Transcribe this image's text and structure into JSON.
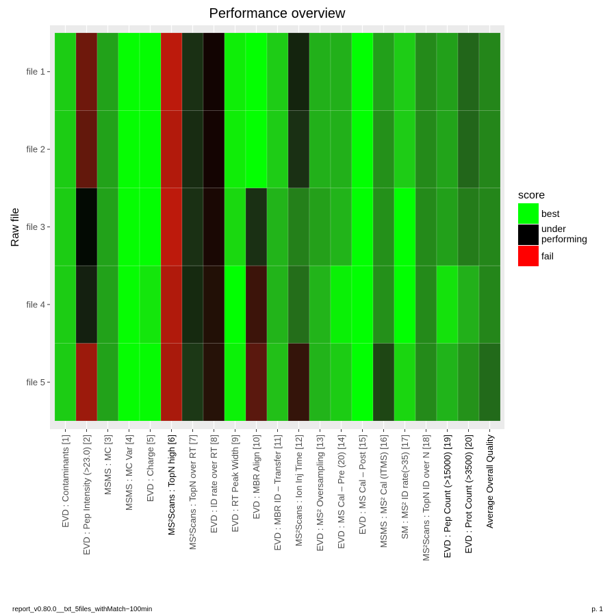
{
  "chart_data": {
    "type": "heatmap",
    "title": "Performance overview",
    "ylabel": "Raw file",
    "xlabel": "",
    "rows": [
      "file 1",
      "file 2",
      "file 3",
      "file 4",
      "file 5"
    ],
    "columns": [
      {
        "label": "EVD : Contaminants [1]",
        "highlight": false
      },
      {
        "label": "EVD : Pep Intensity (>23.0) [2]",
        "highlight": false
      },
      {
        "label": "MSMS : MC [3]",
        "highlight": false
      },
      {
        "label": "MSMS : MC Var [4]",
        "highlight": false
      },
      {
        "label": "EVD : Charge [5]",
        "highlight": false
      },
      {
        "label": "MS²Scans : TopN high [6]",
        "highlight": true
      },
      {
        "label": "MS²Scans : TopN over RT [7]",
        "highlight": false
      },
      {
        "label": "EVD : ID rate over RT [8]",
        "highlight": false
      },
      {
        "label": "EVD : RT Peak Width [9]",
        "highlight": false
      },
      {
        "label": "EVD : MBR Align [10]",
        "highlight": false
      },
      {
        "label": "EVD : MBR ID – Transfer [11]",
        "highlight": false
      },
      {
        "label": "MS²Scans : Ion Inj Time [12]",
        "highlight": false
      },
      {
        "label": "EVD : MS² Oversampling [13]",
        "highlight": false
      },
      {
        "label": "EVD : MS Cal – Pre (20) [14]",
        "highlight": false
      },
      {
        "label": "EVD : MS Cal – Post [15]",
        "highlight": false
      },
      {
        "label": "MSMS : MS² Cal (ITMS) [16]",
        "highlight": false
      },
      {
        "label": "SM : MS² ID rate(>35) [17]",
        "highlight": false
      },
      {
        "label": "MS²Scans : TopN ID over N [18]",
        "highlight": false
      },
      {
        "label": "EVD : Pep Count (>15000) [19]",
        "highlight": true
      },
      {
        "label": "EVD : Prot Count (>3500) [20]",
        "highlight": true
      },
      {
        "label": "Average Overall Quality",
        "highlight": true
      }
    ],
    "cell_colors": [
      [
        "#1ccc14",
        "#6e180c",
        "#22a21a",
        "#06fd03",
        "#05fd02",
        "#bc1a0c",
        "#1a3014",
        "#120402",
        "#0fee08",
        "#04ff02",
        "#1ecc16",
        "#14240e",
        "#22b01a",
        "#22b01a",
        "#02ff02",
        "#22a01a",
        "#1ecc16",
        "#248a1a",
        "#22a01a",
        "#22661a",
        "#24861a"
      ],
      [
        "#1ccc14",
        "#63180c",
        "#22a21a",
        "#06fd03",
        "#05fd02",
        "#b21a0c",
        "#182c12",
        "#140402",
        "#10ed08",
        "#04ff02",
        "#1ecc16",
        "#1a3014",
        "#22b01a",
        "#22b01a",
        "#02ff02",
        "#24901a",
        "#1ecc16",
        "#248a1a",
        "#22a41a",
        "#22661a",
        "#24861a"
      ],
      [
        "#1ccc14",
        "#030a03",
        "#22a21a",
        "#06fd03",
        "#03fe02",
        "#bd1a0c",
        "#1a3014",
        "#1a0804",
        "#1ad810",
        "#1a3014",
        "#22b41a",
        "#24801a",
        "#24a01a",
        "#22b41a",
        "#02ff02",
        "#24901a",
        "#02ff02",
        "#248a1a",
        "#22a01a",
        "#247c1a",
        "#24861a"
      ],
      [
        "#1ccc14",
        "#142010",
        "#22a21a",
        "#06fd03",
        "#14e60c",
        "#b01a0c",
        "#162a10",
        "#221006",
        "#02ff02",
        "#3c140a",
        "#22b41a",
        "#246e1a",
        "#22b41a",
        "#0af006",
        "#02ff02",
        "#24901a",
        "#02ff02",
        "#248a1a",
        "#14e20c",
        "#22b01a",
        "#24861a"
      ],
      [
        "#1ccc14",
        "#9c1a0c",
        "#22a21a",
        "#06fd03",
        "#06fb03",
        "#a91a0c",
        "#1c3816",
        "#261208",
        "#0cf208",
        "#5a180e",
        "#22c018",
        "#34140a",
        "#22b41a",
        "#1ccc14",
        "#02ff02",
        "#1e4614",
        "#1ad610",
        "#248a1a",
        "#20b41a",
        "#24921a",
        "#226a1a"
      ]
    ],
    "legend": {
      "title": "score",
      "placement": "right",
      "items": [
        {
          "label": "best",
          "color": "#00ff00"
        },
        {
          "label": "under performing",
          "color": "#000000"
        },
        {
          "label": "fail",
          "color": "#ff0000"
        }
      ]
    },
    "grid": true
  },
  "footer": {
    "left": "report_v0.80.0__txt_5files_withMatch−100min",
    "right": "p. 1"
  }
}
